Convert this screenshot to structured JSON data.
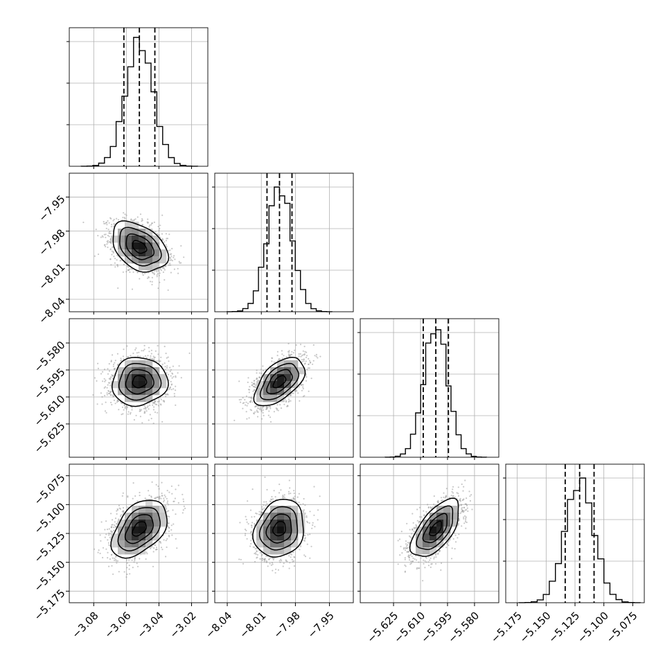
{
  "chart_data": {
    "type": "corner",
    "description_of_panels": "4x4 lower-triangle corner plot: 1D marginal histograms on diagonal with dashed quantile lines, 2D density contours with scatter below diagonal",
    "grid": true,
    "parameters": [
      {
        "range": [
          -3.095,
          -3.01
        ],
        "ticks": [
          "−3.08",
          "−3.06",
          "−3.04",
          "−3.02"
        ],
        "tick_values": [
          -3.08,
          -3.06,
          -3.04,
          -3.02
        ],
        "mean": -3.052,
        "sd": 0.0085,
        "quantiles": [
          -3.0615,
          -3.052,
          -3.0425
        ],
        "hist_peak_frac": 0.93
      },
      {
        "range": [
          -8.051,
          -7.929
        ],
        "ticks": [
          "−8.04",
          "−8.01",
          "−7.98",
          "−7.95"
        ],
        "tick_values": [
          -8.04,
          -8.01,
          -7.98,
          -7.95
        ],
        "mean": -7.994,
        "sd": 0.011,
        "quantiles": [
          -8.005,
          -7.994,
          -7.983
        ],
        "hist_peak_frac": 0.9
      },
      {
        "range": [
          -5.6435,
          -5.5665
        ],
        "ticks": [
          "−5.625",
          "−5.610",
          "−5.595",
          "−5.580"
        ],
        "tick_values": [
          -5.625,
          -5.61,
          -5.595,
          -5.58
        ],
        "mean": -5.6015,
        "sd": 0.0067,
        "quantiles": [
          -5.6085,
          -5.6015,
          -5.5945
        ],
        "hist_peak_frac": 0.92
      },
      {
        "range": [
          -5.185,
          -5.065
        ],
        "ticks": [
          "−5.175",
          "−5.150",
          "−5.125",
          "−5.100",
          "−5.075"
        ],
        "tick_values": [
          -5.175,
          -5.15,
          -5.125,
          -5.1,
          -5.075
        ],
        "mean": -5.121,
        "sd": 0.0125,
        "quantiles": [
          -5.1335,
          -5.121,
          -5.1085
        ],
        "hist_peak_frac": 0.9
      }
    ],
    "correlations": [
      {
        "row": 1,
        "col": 0,
        "rho": -0.38
      },
      {
        "row": 2,
        "col": 0,
        "rho": 0.05
      },
      {
        "row": 2,
        "col": 1,
        "rho": 0.55
      },
      {
        "row": 3,
        "col": 0,
        "rho": 0.45
      },
      {
        "row": 3,
        "col": 1,
        "rho": 0.18
      },
      {
        "row": 3,
        "col": 2,
        "rho": 0.62
      }
    ],
    "contour_levels_sigma": [
      0.5,
      1.0,
      1.5,
      2.0
    ],
    "histogram_bins": 20,
    "colors": {
      "hist": "#000000",
      "contour": "#000000",
      "scatter": "#9a9a9a",
      "grid": "#b0b0b0"
    }
  }
}
